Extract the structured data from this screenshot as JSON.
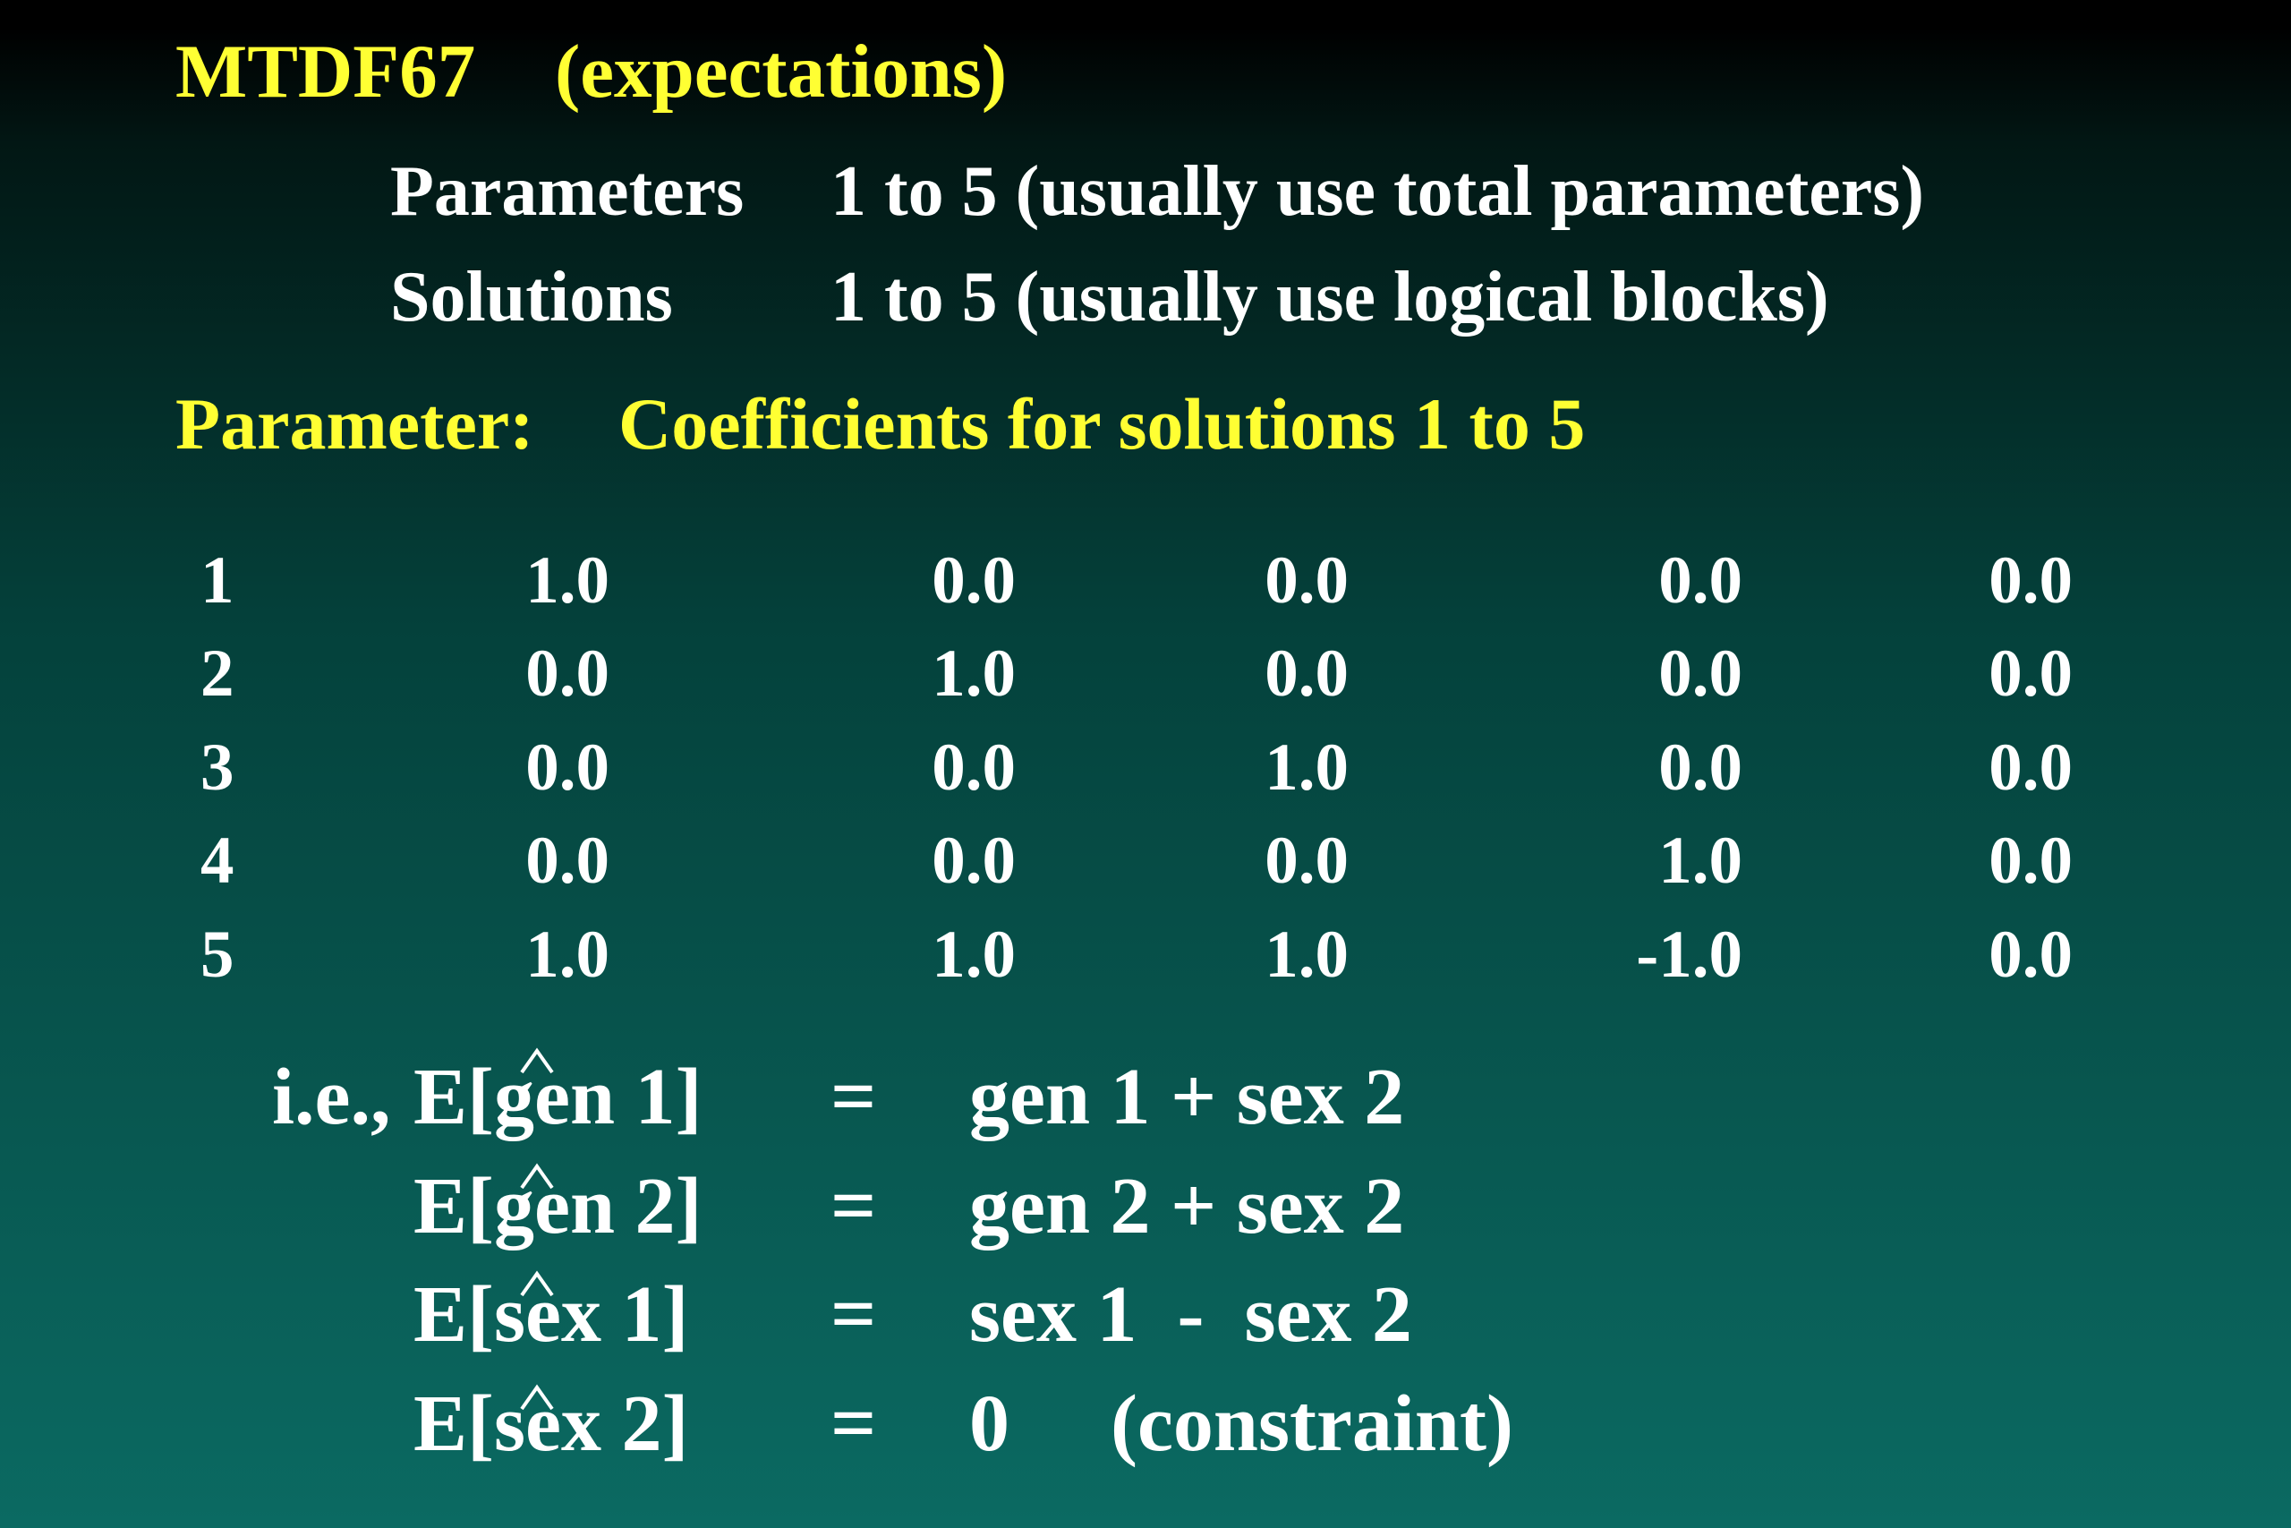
{
  "header": {
    "title": "MTDF67",
    "subtitle": "(expectations)"
  },
  "settings": [
    {
      "label": "Parameters",
      "value": "1 to 5 (usually use total parameters)"
    },
    {
      "label": "Solutions",
      "value": "1 to 5 (usually use logical blocks)"
    }
  ],
  "section": {
    "label": "Parameter:",
    "title": "Coefficients for solutions 1 to 5"
  },
  "table": {
    "rows": [
      [
        "1",
        "1.0",
        "0.0",
        "0.0",
        "0.0",
        "0.0"
      ],
      [
        "2",
        "0.0",
        "1.0",
        "0.0",
        "0.0",
        "0.0"
      ],
      [
        "3",
        "0.0",
        "0.0",
        "1.0",
        "0.0",
        "0.0"
      ],
      [
        "4",
        "0.0",
        "0.0",
        "0.0",
        "1.0",
        "0.0"
      ],
      [
        "5",
        "1.0",
        "1.0",
        "1.0",
        "-1.0",
        "0.0"
      ]
    ]
  },
  "equations": [
    {
      "prefix": "i.e.,",
      "lhs": "E[gen 1]",
      "op": "=",
      "rhs": "gen 1 + sex 2"
    },
    {
      "lhs": "E[gen 2]",
      "op": "=",
      "rhs": "gen 2 + sex 2"
    },
    {
      "lhs": "E[sex 1]",
      "op": "=",
      "rhs": "sex 1  -  sex 2"
    },
    {
      "lhs": "E[sex 2]",
      "op": "=",
      "rhs": "0",
      "note": "(constraint)"
    }
  ]
}
